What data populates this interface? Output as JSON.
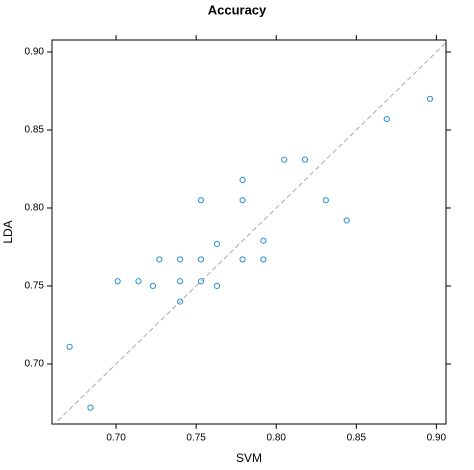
{
  "chart_data": {
    "type": "scatter",
    "title": "Accuracy",
    "x_label": "SVM",
    "y_label": "LDA",
    "series": [
      {
        "color": "#2a8fd8",
        "x": [
          0.671,
          0.684,
          0.701,
          0.714,
          0.723,
          0.727,
          0.74,
          0.74,
          0.74,
          0.753,
          0.753,
          0.753,
          0.763,
          0.763,
          0.779,
          0.779,
          0.779,
          0.792,
          0.792,
          0.805,
          0.818,
          0.831,
          0.844,
          0.869,
          0.896
        ],
        "values": [
          0.711,
          0.672,
          0.753,
          0.753,
          0.75,
          0.767,
          0.767,
          0.753,
          0.74,
          0.805,
          0.767,
          0.753,
          0.777,
          0.75,
          0.818,
          0.805,
          0.767,
          0.779,
          0.767,
          0.831,
          0.831,
          0.805,
          0.792,
          0.857,
          0.87
        ]
      }
    ],
    "xlim": [
      0.66,
      0.906
    ],
    "ylim": [
      0.6615,
      0.9077
    ],
    "xticks": [
      {
        "value": 0.7,
        "label": "0.70"
      },
      {
        "value": 0.75,
        "label": "0.75"
      },
      {
        "value": 0.8,
        "label": "0.80"
      },
      {
        "value": 0.85,
        "label": "0.85"
      },
      {
        "value": 0.9,
        "label": "0.90"
      }
    ],
    "yticks": [
      {
        "value": 0.7,
        "label": "0.70"
      },
      {
        "value": 0.75,
        "label": "0.75"
      },
      {
        "value": 0.8,
        "label": "0.80"
      },
      {
        "value": 0.85,
        "label": "0.85"
      },
      {
        "value": 0.9,
        "label": "0.90"
      }
    ],
    "reference_line": true
  }
}
